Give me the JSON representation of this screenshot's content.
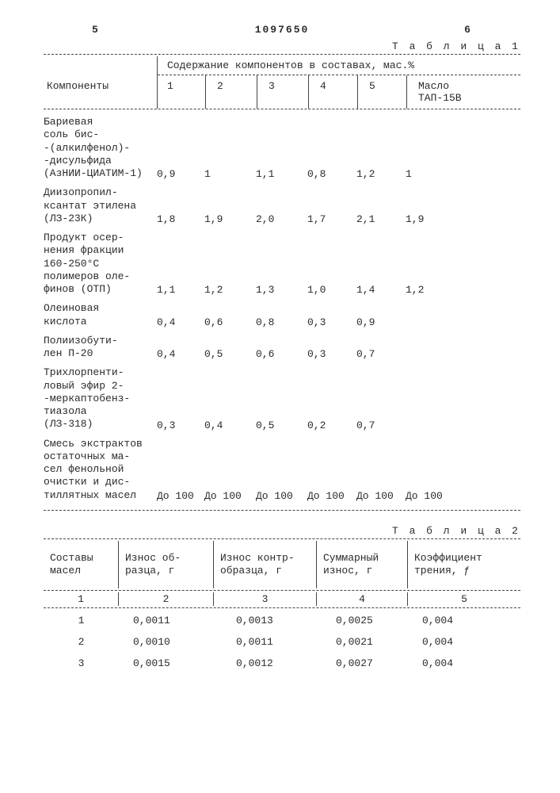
{
  "top_left_num": "5",
  "doc_number": "1097650",
  "top_right_num": "6",
  "table1": {
    "caption": "Т а б л и ц а  1",
    "header_components": "Компоненты",
    "header_group": "Содержание компонентов в составах, мас.%",
    "cols": [
      "1",
      "2",
      "3",
      "4",
      "5",
      "Масло\nТАП-15В"
    ],
    "rows": [
      {
        "label": "Бариевая\nсоль бис-\n-(алкилфенол)-\n-дисульфида\n(АзНИИ-ЦИАТИМ-1)",
        "v": [
          "0,9",
          "1",
          "1,1",
          "0,8",
          "1,2",
          "1"
        ]
      },
      {
        "label": "Диизопропил-\nксантат этилена\n(ЛЗ-23К)",
        "v": [
          "1,8",
          "1,9",
          "2,0",
          "1,7",
          "2,1",
          "1,9"
        ]
      },
      {
        "label": "Продукт осер-\nнения фракции\n160-250°С\nполимеров оле-\nфинов (ОТП)",
        "v": [
          "1,1",
          "1,2",
          "1,3",
          "1,0",
          "1,4",
          "1,2"
        ]
      },
      {
        "label": "Олеиновая\nкислота",
        "v": [
          "0,4",
          "0,6",
          "0,8",
          "0,3",
          "0,9",
          ""
        ]
      },
      {
        "label": "Полиизобути-\nлен П-20",
        "v": [
          "0,4",
          "0,5",
          "0,6",
          "0,3",
          "0,7",
          ""
        ]
      },
      {
        "label": "Трихлорпенти-\nловый эфир 2-\n-меркаптобенз-\nтиазола\n(ЛЗ-318)",
        "v": [
          "0,3",
          "0,4",
          "0,5",
          "0,2",
          "0,7",
          ""
        ]
      },
      {
        "label": "Смесь экстрактов\nостаточных ма-\nсел фенольной\nочистки и дис-\nтиллятных масел",
        "v": [
          "До 100",
          "До 100",
          "До 100",
          "До 100",
          "До 100",
          "До 100"
        ]
      }
    ]
  },
  "table2": {
    "caption": "Т а б л и ц а  2",
    "headers": [
      "Составы\nмасел",
      "Износ об-\nразца, г",
      "Износ контр-\nобразца, г",
      "Суммарный\nизнос, г",
      "Коэффициент\nтрения, ƒ"
    ],
    "numrow": [
      "1",
      "2",
      "3",
      "4",
      "5"
    ],
    "rows": [
      [
        "1",
        "0,0011",
        "0,0013",
        "0,0025",
        "0,004"
      ],
      [
        "2",
        "0,0010",
        "0,0011",
        "0,0021",
        "0,004"
      ],
      [
        "3",
        "0,0015",
        "0,0012",
        "0,0027",
        "0,004"
      ]
    ]
  }
}
